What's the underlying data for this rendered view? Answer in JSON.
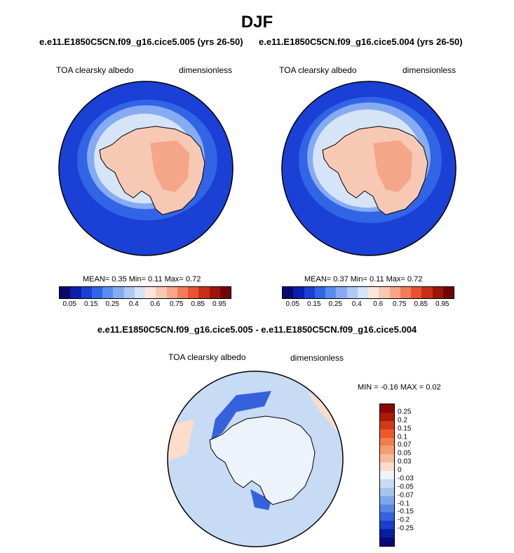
{
  "title": "DJF",
  "panels": [
    {
      "case_title": "e.e11.E1850C5CN.f09_g16.cice5.005 (yrs 26-50)",
      "variable": "TOA clearsky albedo",
      "units": "dimensionless",
      "mean_label": "MEAN=",
      "mean": "0.35",
      "min_label": "Min=",
      "min": "0.11",
      "max_label": "Max=",
      "max": "0.72"
    },
    {
      "case_title": "e.e11.E1850C5CN.f09_g16.cice5.004 (yrs 26-50)",
      "variable": "TOA clearsky albedo",
      "units": "dimensionless",
      "mean_label": "MEAN=",
      "mean": "0.37",
      "min_label": "Min=",
      "min": "0.11",
      "max_label": "Max=",
      "max": "0.72"
    }
  ],
  "diff_panel": {
    "title": "e.e11.E1850C5CN.f09_g16.cice5.005 - e.e11.E1850C5CN.f09_g16.cice5.004",
    "variable": "TOA clearsky albedo",
    "units": "dimensionless",
    "minmax_text": "MIN = -0.16 MAX = 0.02"
  },
  "colorbar_abs": {
    "colors": [
      "#08086e",
      "#0c1fa8",
      "#1a40d6",
      "#3264e6",
      "#5a8cef",
      "#86abf2",
      "#aec8f4",
      "#d6e4f7",
      "#fce6dc",
      "#f7c9b4",
      "#f5a688",
      "#f07c5a",
      "#e8522f",
      "#c92e16",
      "#9e140a",
      "#6e0606"
    ],
    "tick_labels": [
      "0.05",
      "0.15",
      "0.25",
      "0.4",
      "0.6",
      "0.75",
      "0.85",
      "0.95"
    ]
  },
  "colorbar_diff": {
    "colors": [
      "#8b0505",
      "#ad1a0a",
      "#d33a18",
      "#ee5a2c",
      "#f47d4e",
      "#f59c73",
      "#f7bb9c",
      "#fbddcb",
      "#edf3fa",
      "#c8dbf4",
      "#a6c4f0",
      "#7ea6ec",
      "#5886e4",
      "#3562dc",
      "#1a3ec8",
      "#0a1ea2",
      "#060a78"
    ],
    "tick_labels": [
      "0.25",
      "0.2",
      "0.15",
      "0.1",
      "0.07",
      "0.05",
      "0.03",
      "0",
      "-0.03",
      "-0.05",
      "-0.07",
      "-0.1",
      "-0.15",
      "-0.2",
      "-0.25"
    ]
  },
  "map_colors": {
    "ocean_deep": "#1a40d6",
    "ocean_mid": "#3264e6",
    "ocean_light": "#86abf2",
    "ice_edge": "#d6e4f7",
    "land_low": "#f7c9b4",
    "land_high": "#f5a688",
    "diff_bg": "#c8dbf4",
    "diff_strong": "#3562dc",
    "diff_pos": "#fbddcb"
  }
}
